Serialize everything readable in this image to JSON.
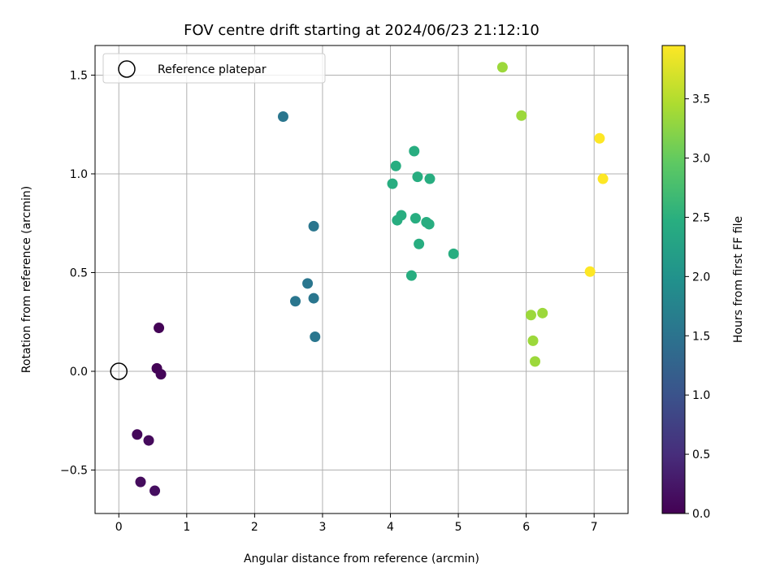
{
  "chart_data": {
    "type": "scatter",
    "title": "FOV centre drift starting at 2024/06/23 21:12:10",
    "xlabel": "Angular distance from reference (arcmin)",
    "ylabel": "Rotation from reference (arcmin)",
    "colorbar_label": "Hours from first FF file",
    "colormap": "viridis",
    "xlim": [
      -0.35,
      7.5
    ],
    "ylim": [
      -0.72,
      1.65
    ],
    "clim": [
      0.0,
      3.95
    ],
    "x_ticks": [
      0,
      1,
      2,
      3,
      4,
      5,
      6,
      7
    ],
    "x_tick_labels": [
      "0",
      "1",
      "2",
      "3",
      "4",
      "5",
      "6",
      "7"
    ],
    "y_ticks": [
      -0.5,
      0.0,
      0.5,
      1.0,
      1.5
    ],
    "y_tick_labels": [
      "−0.5",
      "0.0",
      "0.5",
      "1.0",
      "1.5"
    ],
    "colorbar_ticks": [
      0.0,
      0.5,
      1.0,
      1.5,
      2.0,
      2.5,
      3.0,
      3.5
    ],
    "colorbar_tick_labels": [
      "0.0",
      "0.5",
      "1.0",
      "1.5",
      "2.0",
      "2.5",
      "3.0",
      "3.5"
    ],
    "grid": true,
    "legend_position": "top-left",
    "reference": {
      "name": "Reference platepar",
      "x": 0.0,
      "y": 0.0
    },
    "points": [
      {
        "x": 0.59,
        "y": 0.22,
        "t": 0.02
      },
      {
        "x": 0.56,
        "y": 0.015,
        "t": 0.03
      },
      {
        "x": 0.62,
        "y": -0.015,
        "t": 0.05
      },
      {
        "x": 0.27,
        "y": -0.32,
        "t": 0.08
      },
      {
        "x": 0.44,
        "y": -0.35,
        "t": 0.1
      },
      {
        "x": 0.32,
        "y": -0.56,
        "t": 0.12
      },
      {
        "x": 0.53,
        "y": -0.605,
        "t": 0.15
      },
      {
        "x": 2.42,
        "y": 1.29,
        "t": 1.55
      },
      {
        "x": 2.87,
        "y": 0.735,
        "t": 1.55
      },
      {
        "x": 2.78,
        "y": 0.445,
        "t": 1.55
      },
      {
        "x": 2.6,
        "y": 0.355,
        "t": 1.55
      },
      {
        "x": 2.87,
        "y": 0.37,
        "t": 1.55
      },
      {
        "x": 2.89,
        "y": 0.175,
        "t": 1.55
      },
      {
        "x": 4.35,
        "y": 1.115,
        "t": 2.45
      },
      {
        "x": 4.08,
        "y": 1.04,
        "t": 2.45
      },
      {
        "x": 4.4,
        "y": 0.985,
        "t": 2.45
      },
      {
        "x": 4.58,
        "y": 0.975,
        "t": 2.45
      },
      {
        "x": 4.03,
        "y": 0.95,
        "t": 2.45
      },
      {
        "x": 4.16,
        "y": 0.79,
        "t": 2.45
      },
      {
        "x": 4.1,
        "y": 0.765,
        "t": 2.45
      },
      {
        "x": 4.37,
        "y": 0.775,
        "t": 2.45
      },
      {
        "x": 4.53,
        "y": 0.755,
        "t": 2.45
      },
      {
        "x": 4.57,
        "y": 0.745,
        "t": 2.45
      },
      {
        "x": 4.42,
        "y": 0.645,
        "t": 2.45
      },
      {
        "x": 4.93,
        "y": 0.595,
        "t": 2.45
      },
      {
        "x": 4.31,
        "y": 0.485,
        "t": 2.45
      },
      {
        "x": 5.65,
        "y": 1.54,
        "t": 3.35
      },
      {
        "x": 5.93,
        "y": 1.295,
        "t": 3.35
      },
      {
        "x": 6.07,
        "y": 0.285,
        "t": 3.35
      },
      {
        "x": 6.24,
        "y": 0.295,
        "t": 3.35
      },
      {
        "x": 6.1,
        "y": 0.155,
        "t": 3.35
      },
      {
        "x": 6.13,
        "y": 0.05,
        "t": 3.35
      },
      {
        "x": 7.08,
        "y": 1.18,
        "t": 3.95
      },
      {
        "x": 7.13,
        "y": 0.975,
        "t": 3.95
      },
      {
        "x": 6.94,
        "y": 0.505,
        "t": 3.95
      }
    ]
  }
}
